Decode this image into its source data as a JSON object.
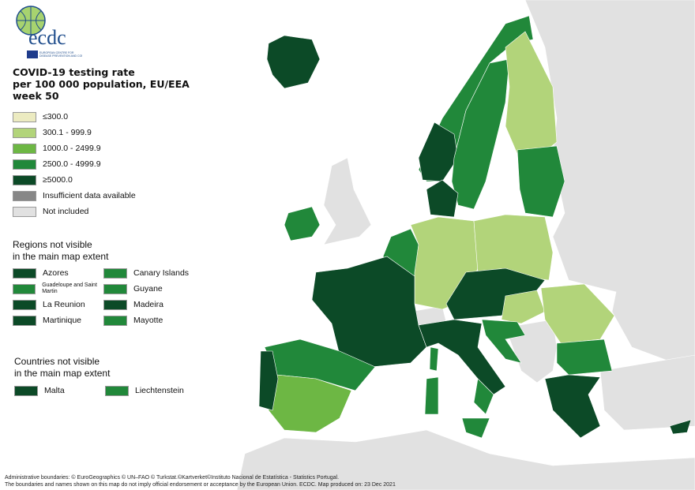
{
  "logo": {
    "text": "ecdc",
    "subtitle": "EUROPEAN CENTRE FOR DISEASE PREVENTION AND CONTROL"
  },
  "title": {
    "line1": "COVID-19 testing rate",
    "line2": "per 100 000 population, EU/EEA",
    "line3": "week 50"
  },
  "legend": [
    {
      "label": "≤300.0",
      "color": "#ecebc1"
    },
    {
      "label": "300.1 - 999.9",
      "color": "#b2d47a"
    },
    {
      "label": "1000.0 - 2499.9",
      "color": "#6db744"
    },
    {
      "label": "2500.0 - 4999.9",
      "color": "#21883a"
    },
    {
      "label": "≥5000.0",
      "color": "#0c4a27"
    },
    {
      "label": "Insufficient data available",
      "color": "#878787"
    },
    {
      "label": "Not included",
      "color": "#e1e1e1"
    }
  ],
  "regions": {
    "heading1": "Regions not visible",
    "heading2": "in the main map extent",
    "items": [
      {
        "label": "Azores",
        "color": "#0c4a27"
      },
      {
        "label": "Canary Islands",
        "color": "#21883a"
      },
      {
        "label": "Guadeloupe and Saint Martin",
        "color": "#21883a"
      },
      {
        "label": "Guyane",
        "color": "#21883a"
      },
      {
        "label": "La Reunion",
        "color": "#0c4a27"
      },
      {
        "label": "Madeira",
        "color": "#0c4a27"
      },
      {
        "label": "Martinique",
        "color": "#0c4a27"
      },
      {
        "label": "Mayotte",
        "color": "#21883a"
      }
    ]
  },
  "countries": {
    "heading1": "Countries not visible",
    "heading2": "in the main map extent",
    "items": [
      {
        "label": "Malta",
        "color": "#0c4a27"
      },
      {
        "label": "Liechtenstein",
        "color": "#21883a"
      }
    ]
  },
  "footer": {
    "line1": "Administrative boundaries: © EuroGeographics © UN–FAO © Turkstat.©Kartverket©Instituto Nacional de Estatística - Statistics Portugal.",
    "line2": "The boundaries and names shown on this map do not imply official endorsement or acceptance by the European Union. ECDC. Map produced on: 23 Dec 2021"
  }
}
